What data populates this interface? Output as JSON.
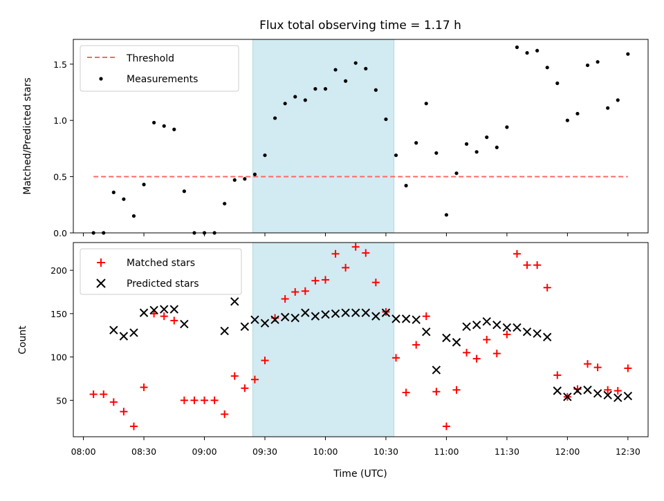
{
  "chart_data": [
    {
      "type": "scatter",
      "title": "Flux total observing time = 1.17 h",
      "ylabel": "Matched/Predicted stars",
      "xlabel": "",
      "xlim": [
        "07:55",
        "12:40"
      ],
      "ylim": [
        0,
        1.72
      ],
      "yticks": [
        0.0,
        0.5,
        1.0,
        1.5
      ],
      "ytick_labels": [
        "0.0",
        "0.5",
        "1.0",
        "1.5"
      ],
      "highlight_span": [
        "09:24",
        "10:34"
      ],
      "highlight_color": "#add8e6",
      "legend_position": "upper left",
      "series": [
        {
          "name": "Threshold",
          "kind": "dashed-line",
          "color": "#ff6666",
          "x": [
            "08:05",
            "12:30"
          ],
          "y": [
            0.5,
            0.5
          ]
        },
        {
          "name": "Measurements",
          "kind": "dots",
          "color": "#000000",
          "x": [
            "08:05",
            "08:10",
            "08:15",
            "08:20",
            "08:25",
            "08:30",
            "08:35",
            "08:40",
            "08:45",
            "08:50",
            "08:55",
            "09:00",
            "09:05",
            "09:10",
            "09:15",
            "09:20",
            "09:25",
            "09:30",
            "09:35",
            "09:40",
            "09:45",
            "09:50",
            "09:55",
            "10:00",
            "10:05",
            "10:10",
            "10:15",
            "10:20",
            "10:25",
            "10:30",
            "10:35",
            "10:40",
            "10:45",
            "10:50",
            "10:55",
            "11:00",
            "11:05",
            "11:10",
            "11:15",
            "11:20",
            "11:25",
            "11:30",
            "11:35",
            "11:40",
            "11:45",
            "11:50",
            "11:55",
            "12:00",
            "12:05",
            "12:10",
            "12:15",
            "12:20",
            "12:25",
            "12:30"
          ],
          "y": [
            0.0,
            0.0,
            0.36,
            0.3,
            0.15,
            0.43,
            0.98,
            0.95,
            0.92,
            0.37,
            0.0,
            0.0,
            0.0,
            0.26,
            0.47,
            0.48,
            0.52,
            0.69,
            1.02,
            1.15,
            1.21,
            1.18,
            1.28,
            1.28,
            1.45,
            1.35,
            1.51,
            1.46,
            1.27,
            1.01,
            0.69,
            0.42,
            0.8,
            1.15,
            0.71,
            0.16,
            0.53,
            0.79,
            0.72,
            0.85,
            0.76,
            0.94,
            1.65,
            1.6,
            1.62,
            1.47,
            1.33,
            1.0,
            1.06,
            1.49,
            1.52,
            1.11,
            1.18,
            1.59
          ]
        }
      ]
    },
    {
      "type": "scatter",
      "title": "",
      "ylabel": "Count",
      "xlabel": "Time (UTC)",
      "xlim": [
        "07:55",
        "12:40"
      ],
      "ylim": [
        8,
        232
      ],
      "yticks": [
        50,
        100,
        150,
        200
      ],
      "xtick_labels": [
        "08:00",
        "08:30",
        "09:00",
        "09:30",
        "10:00",
        "10:30",
        "11:00",
        "11:30",
        "12:00",
        "12:30"
      ],
      "highlight_span": [
        "09:24",
        "10:34"
      ],
      "legend_position": "upper left",
      "series": [
        {
          "name": "Matched stars",
          "marker": "+",
          "color": "#ff0000",
          "x": [
            "08:05",
            "08:10",
            "08:15",
            "08:20",
            "08:25",
            "08:30",
            "08:35",
            "08:40",
            "08:45",
            "08:50",
            "08:55",
            "09:00",
            "09:05",
            "09:10",
            "09:15",
            "09:20",
            "09:25",
            "09:30",
            "09:35",
            "09:40",
            "09:45",
            "09:50",
            "09:55",
            "10:00",
            "10:05",
            "10:10",
            "10:15",
            "10:20",
            "10:25",
            "10:30",
            "10:35",
            "10:40",
            "10:45",
            "10:50",
            "10:55",
            "11:00",
            "11:05",
            "11:10",
            "11:15",
            "11:20",
            "11:25",
            "11:30",
            "11:35",
            "11:40",
            "11:45",
            "11:50",
            "11:55",
            "12:00",
            "12:05",
            "12:10",
            "12:15",
            "12:20",
            "12:25",
            "12:30"
          ],
          "y": [
            57,
            57,
            48,
            37,
            20,
            65,
            150,
            147,
            142,
            50,
            50,
            50,
            50,
            34,
            78,
            64,
            74,
            96,
            145,
            167,
            175,
            176,
            188,
            189,
            219,
            203,
            227,
            220,
            186,
            152,
            99,
            59,
            114,
            147,
            60,
            20,
            62,
            105,
            98,
            120,
            104,
            126,
            219,
            206,
            206,
            180,
            79,
            54,
            63,
            92,
            88,
            62,
            61,
            87
          ]
        },
        {
          "name": "Predicted stars",
          "marker": "x",
          "color": "#000000",
          "x": [
            "08:15",
            "08:20",
            "08:25",
            "08:30",
            "08:35",
            "08:40",
            "08:45",
            "08:50",
            "09:10",
            "09:15",
            "09:20",
            "09:25",
            "09:30",
            "09:35",
            "09:40",
            "09:45",
            "09:50",
            "09:55",
            "10:00",
            "10:05",
            "10:10",
            "10:15",
            "10:20",
            "10:25",
            "10:30",
            "10:35",
            "10:40",
            "10:45",
            "10:50",
            "10:55",
            "11:00",
            "11:05",
            "11:10",
            "11:15",
            "11:20",
            "11:25",
            "11:30",
            "11:35",
            "11:40",
            "11:45",
            "11:50",
            "11:55",
            "12:00",
            "12:05",
            "12:10",
            "12:15",
            "12:20",
            "12:25",
            "12:30"
          ],
          "y": [
            131,
            124,
            128,
            151,
            154,
            155,
            155,
            138,
            130,
            164,
            135,
            143,
            139,
            143,
            146,
            145,
            151,
            147,
            149,
            150,
            151,
            151,
            151,
            147,
            151,
            144,
            144,
            143,
            129,
            85,
            122,
            117,
            135,
            137,
            141,
            137,
            134,
            134,
            129,
            127,
            123,
            61,
            54,
            61,
            62,
            58,
            56,
            53,
            55
          ]
        }
      ]
    }
  ]
}
